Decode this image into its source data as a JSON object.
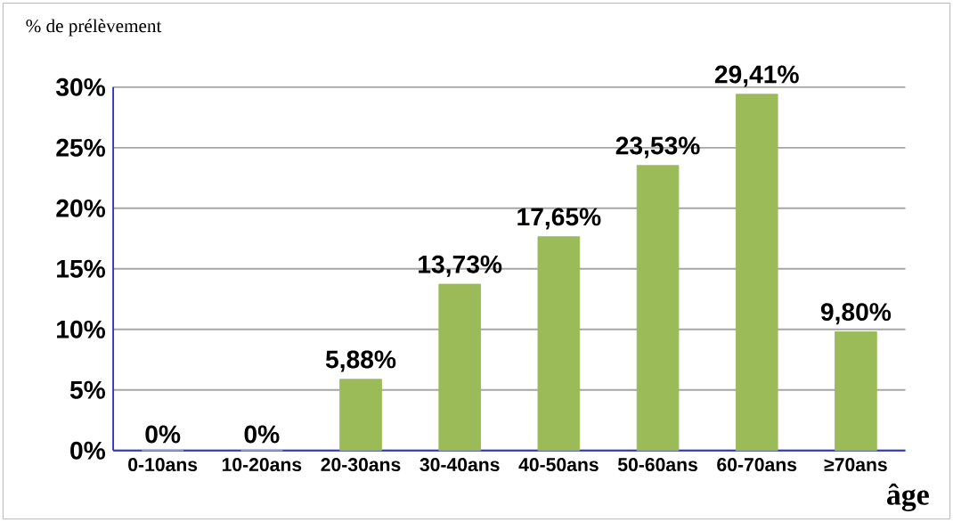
{
  "chart_data": {
    "type": "bar",
    "ylabel": "% de prélèvement",
    "xlabel": "âge",
    "categories": [
      "0-10ans",
      "10-20ans",
      "20-30ans",
      "30-40ans",
      "40-50ans",
      "50-60ans",
      "60-70ans",
      "≥70ans"
    ],
    "values": [
      0,
      0,
      5.88,
      13.73,
      17.65,
      23.53,
      29.41,
      9.8
    ],
    "value_labels": [
      "0%",
      "0%",
      "5,88%",
      "13,73%",
      "17,65%",
      "23,53%",
      "29,41%",
      "9,80%"
    ],
    "color": "#9bbb59",
    "ylim": [
      0,
      30
    ],
    "yticks": [
      {
        "value": 0,
        "label": "0%"
      },
      {
        "value": 5,
        "label": "5%"
      },
      {
        "value": 10,
        "label": "10%"
      },
      {
        "value": 15,
        "label": "15%"
      },
      {
        "value": 20,
        "label": "20%"
      },
      {
        "value": 25,
        "label": "25%"
      },
      {
        "value": 30,
        "label": "30%"
      }
    ],
    "grid": "y"
  }
}
